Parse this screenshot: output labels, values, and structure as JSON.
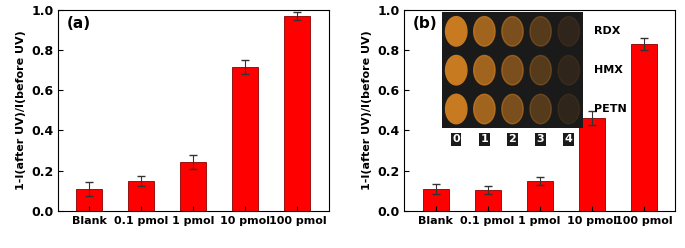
{
  "chart_data": [
    {
      "type": "bar",
      "title": "(a)",
      "categories": [
        "Blank",
        "0.1 pmol",
        "1 pmol",
        "10 pmol",
        "100 pmol"
      ],
      "values": [
        0.11,
        0.15,
        0.245,
        0.715,
        0.97
      ],
      "errors": [
        0.035,
        0.025,
        0.035,
        0.035,
        0.02
      ],
      "color": "#ff0000",
      "y_label": "1-I(after UV)/I(before UV)",
      "ylim": [
        0,
        1.0
      ],
      "yticks": [
        {
          "value": 0,
          "label": "0.0"
        },
        0.2,
        0.4,
        0.6,
        0.8,
        {
          "value": 1.0,
          "label": "1.0"
        }
      ]
    },
    {
      "type": "bar",
      "title": "(b)",
      "categories": [
        "Blank",
        "0.1 pmol",
        "1 pmol",
        "10 pmol",
        "100 pmol"
      ],
      "values": [
        0.11,
        0.105,
        0.15,
        0.46,
        0.83
      ],
      "errors": [
        0.025,
        0.02,
        0.02,
        0.035,
        0.03
      ],
      "color": "#ff0000",
      "y_label": "1-I(after UV)/I(before UV)",
      "ylim": [
        0,
        1.0
      ],
      "yticks": [
        {
          "value": 0,
          "label": "0.0"
        },
        0.2,
        0.4,
        0.6,
        0.8,
        {
          "value": 1.0,
          "label": "1.0"
        }
      ],
      "inset": {
        "row_labels": [
          "RDX",
          "HMX",
          "PETN"
        ],
        "column_labels": [
          0,
          1,
          2,
          3,
          4
        ]
      }
    }
  ]
}
